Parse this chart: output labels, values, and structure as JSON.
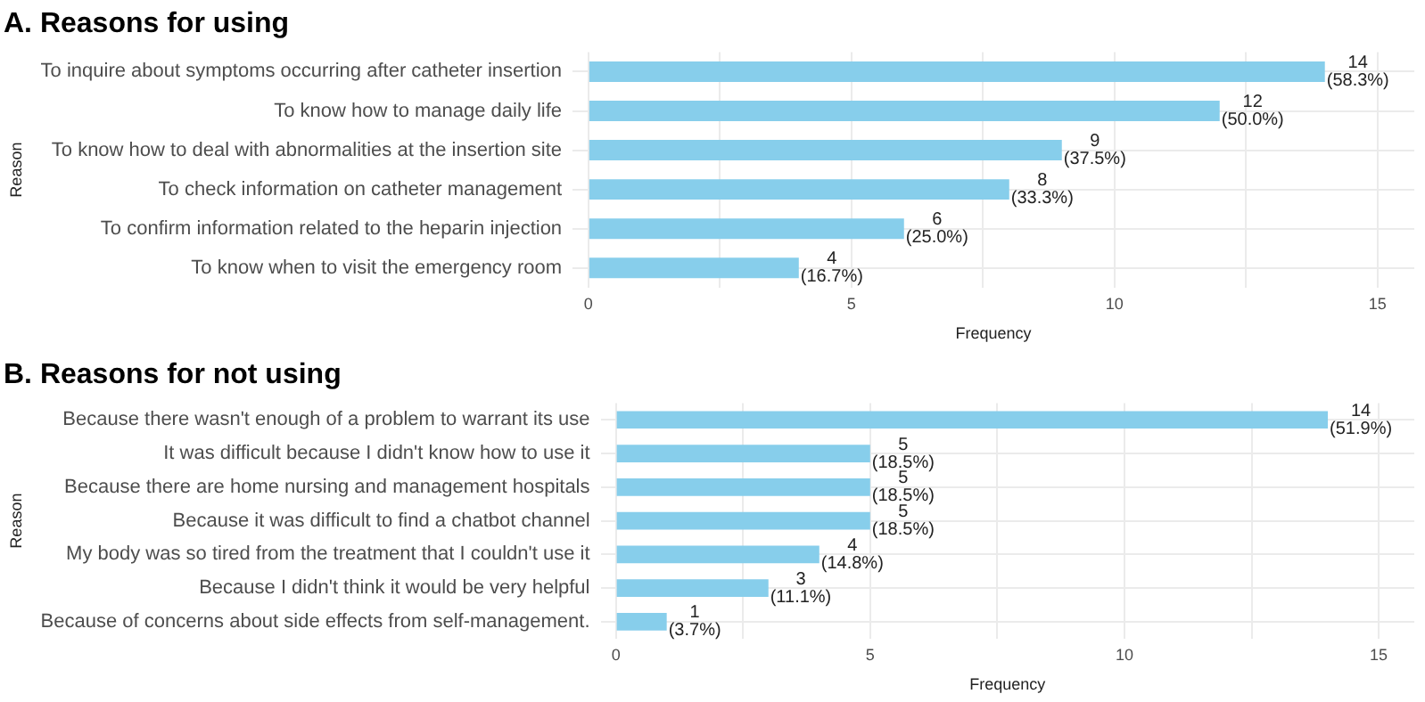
{
  "chart_data": [
    {
      "type": "bar",
      "orientation": "horizontal",
      "title": "A. Reasons for using",
      "xlabel": "Frequency",
      "ylabel": "Reason",
      "categories": [
        "To inquire about symptoms occurring after catheter insertion",
        "To know how to manage daily life",
        "To know how to deal with abnormalities at the insertion site",
        "To check information on catheter management",
        "To confirm information related to the heparin injection",
        "To know when to visit the emergency room"
      ],
      "values": [
        14,
        12,
        9,
        8,
        6,
        4
      ],
      "color": "#87ceeb",
      "value_labels": [
        "14 (58.3%)",
        "12 (50.0%)",
        "9 (37.5%)",
        "8 (33.3%)",
        "6 (25.0%)",
        "4 (16.7%)"
      ],
      "xlim": [
        -0.3,
        15.7
      ],
      "xticks": [
        0,
        {
          "value": 2.5,
          "label": null
        },
        5,
        {
          "value": 7.5,
          "label": null
        },
        10,
        {
          "value": 12.5,
          "label": null
        },
        15
      ],
      "grid": true,
      "legend": false
    },
    {
      "type": "bar",
      "orientation": "horizontal",
      "title": "B. Reasons for not using",
      "xlabel": "Frequency",
      "ylabel": "Reason",
      "categories": [
        "Because there wasn't enough of a problem to warrant its use",
        "It was difficult because I didn't know how to use it",
        "Because there are home nursing and management hospitals",
        "Because it was difficult to find a chatbot channel",
        "My body was so tired from the treatment that I couldn't use it",
        "Because I didn't think it would be very helpful",
        "Because of concerns about side effects from self-management."
      ],
      "values": [
        14,
        5,
        5,
        5,
        4,
        3,
        1
      ],
      "color": "#87ceeb",
      "value_labels": [
        "14 (51.9%)",
        "5 (18.5%)",
        "5 (18.5%)",
        "5 (18.5%)",
        "4 (14.8%)",
        "3 (11.1%)",
        "1 (3.7%)"
      ],
      "xlim": [
        -0.3,
        15.7
      ],
      "xticks": [
        0,
        {
          "value": 2.5,
          "label": null
        },
        5,
        {
          "value": 7.5,
          "label": null
        },
        10,
        {
          "value": 12.5,
          "label": null
        },
        15
      ],
      "grid": true,
      "legend": false
    }
  ]
}
